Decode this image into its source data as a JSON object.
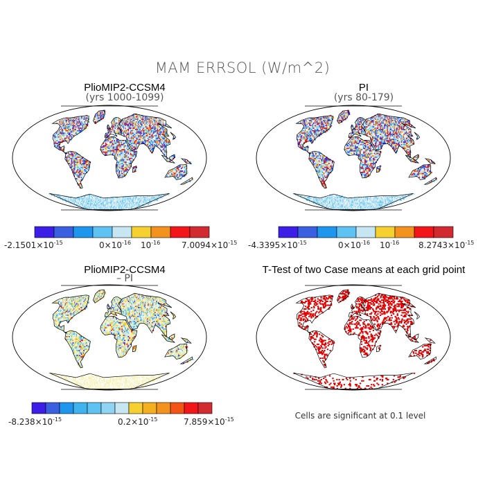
{
  "title": "MAM ERRSOL (W/m^2)",
  "colors": {
    "palette": [
      "#3d1ee6",
      "#3a5fe0",
      "#1e96ee",
      "#5ec3f2",
      "#c6e6f2",
      "#f5d030",
      "#f49220",
      "#f2151a",
      "#d12a30"
    ],
    "sig": "#e00000",
    "coast": "#000000"
  },
  "panels": [
    {
      "id": "p1",
      "title": "PlioMIP2-CCSM4",
      "subtitle": "(yrs 1000-1099)",
      "colorbar": {
        "min": "-2.1501×10",
        "min_exp": "-15",
        "mid1": "0×10",
        "mid1_exp": "-16",
        "mid2": "10",
        "mid2_exp": "-16",
        "max": "7.0094×10",
        "max_exp": "-15",
        "n": 9
      }
    },
    {
      "id": "p2",
      "title": "PI",
      "subtitle": "(yrs 80-179)",
      "colorbar": {
        "min": "-4.3395×10",
        "min_exp": "-15",
        "mid1": "0×10",
        "mid1_exp": "-16",
        "mid2": "10",
        "mid2_exp": "-16",
        "max": "8.2743×10",
        "max_exp": "-15",
        "n": 9
      }
    },
    {
      "id": "p3",
      "title": "PlioMIP2-CCSM4",
      "subtitle": "– PI",
      "colorbar": {
        "min": "-8.238×10",
        "min_exp": "-15",
        "mid1": "0.2×10",
        "mid1_exp": "-15",
        "max": "7.859×10",
        "max_exp": "-15",
        "n": 13
      }
    },
    {
      "id": "p4",
      "title": "T-Test of two Case means at each grid point",
      "note": "Cells are significant at 0.1 level"
    }
  ]
}
